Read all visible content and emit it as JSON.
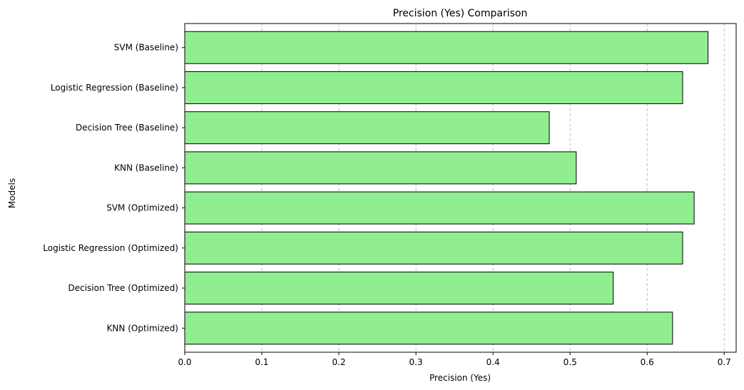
{
  "chart_data": {
    "type": "bar",
    "orientation": "horizontal",
    "title": "Precision (Yes) Comparison",
    "xlabel": "Precision (Yes)",
    "ylabel": "Models",
    "categories": [
      "SVM (Baseline)",
      "Logistic Regression (Baseline)",
      "Decision Tree (Baseline)",
      "KNN (Baseline)",
      "SVM (Optimized)",
      "Logistic Regression (Optimized)",
      "Decision Tree (Optimized)",
      "KNN (Optimized)"
    ],
    "values": [
      0.679,
      0.646,
      0.473,
      0.508,
      0.661,
      0.646,
      0.556,
      0.633
    ],
    "xlim": [
      0.0,
      0.7155
    ],
    "xticks": [
      0.0,
      0.1,
      0.2,
      0.3,
      0.4,
      0.5,
      0.6,
      0.7
    ],
    "xtick_labels": [
      "0.0",
      "0.1",
      "0.2",
      "0.3",
      "0.4",
      "0.5",
      "0.6",
      "0.7"
    ],
    "grid": "x-dashed",
    "bar_color": "#90ee90",
    "bar_edge_color": "#000000",
    "grid_color": "#b0b0b0"
  }
}
